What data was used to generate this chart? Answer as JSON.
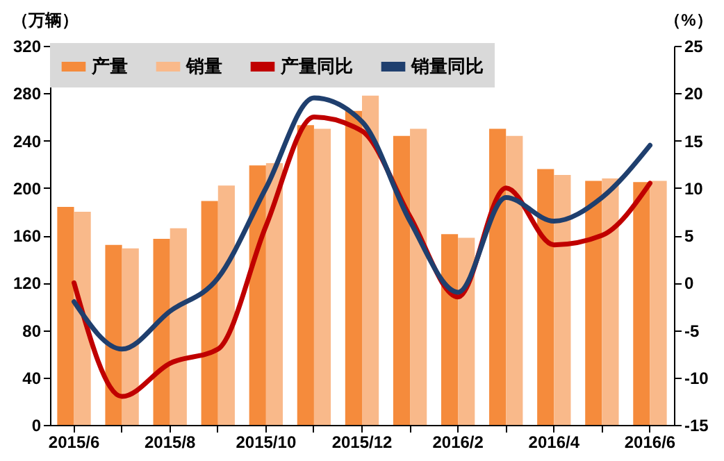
{
  "chart_data": {
    "type": "bar",
    "ylabel": "（万辆）",
    "y2label": "（%）",
    "categories": [
      "2015/6",
      null,
      "2015/8",
      null,
      "2015/10",
      null,
      "2015/12",
      null,
      "2016/2",
      null,
      "2016/4",
      null,
      "2016/6"
    ],
    "series": [
      {
        "name": "产量",
        "color": "#f58b3c",
        "values": [
          184,
          152,
          157,
          189,
          219,
          253,
          265,
          244,
          161,
          250,
          216,
          206,
          205
        ]
      },
      {
        "name": "销量",
        "color": "#f9b98a",
        "values": [
          180,
          149,
          166,
          202,
          221,
          250,
          278,
          250,
          158,
          244,
          211,
          208,
          206
        ]
      },
      {
        "name": "产量同比",
        "type": "line",
        "axis": "y2",
        "color": "#c00000",
        "values": [
          0,
          -12,
          -8.5,
          -7,
          6,
          17.5,
          16,
          7,
          -1.5,
          10,
          4,
          5,
          10.5
        ]
      },
      {
        "name": "销量同比",
        "type": "line",
        "axis": "y2",
        "color": "#1f3f6e",
        "values": [
          -2,
          -7,
          -3,
          0.5,
          10,
          19.5,
          17,
          6.5,
          -1,
          9,
          6.5,
          9,
          14.5
        ]
      }
    ],
    "ylim": [
      0,
      320
    ],
    "yticks": [
      0,
      40,
      80,
      120,
      160,
      200,
      240,
      280,
      320
    ],
    "y2lim": [
      -15,
      25
    ],
    "y2ticks": [
      -15,
      -10,
      -5,
      0,
      5,
      10,
      15,
      20,
      25
    ],
    "grid": false,
    "legend": "top",
    "marker": "none",
    "line_style": "solid"
  }
}
